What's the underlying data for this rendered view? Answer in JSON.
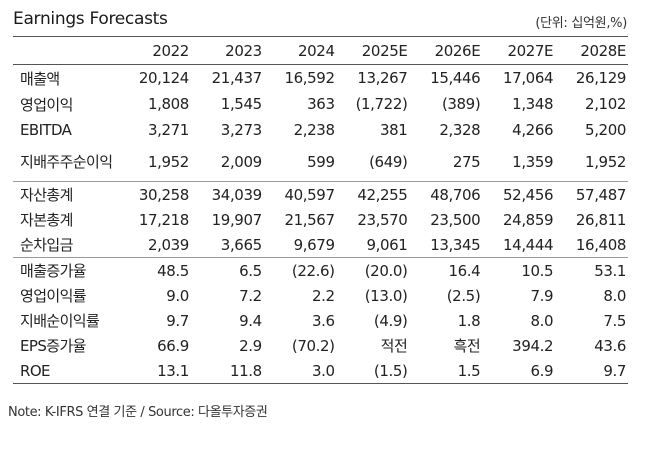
{
  "title": "Earnings Forecasts",
  "unit_note": "(단위: 십억원,%)",
  "columns": [
    "",
    "2022",
    "2023",
    "2024",
    "2025E",
    "2026E",
    "2027E",
    "2028E"
  ],
  "groups": [
    {
      "rows": [
        {
          "label": "매출액",
          "values": [
            "20,124",
            "21,437",
            "16,592",
            "13,267",
            "15,446",
            "17,064",
            "26,129"
          ]
        },
        {
          "label": "영업이익",
          "values": [
            "1,808",
            "1,545",
            "363",
            "(1,722)",
            "(389)",
            "1,348",
            "2,102"
          ]
        },
        {
          "label": "EBITDA",
          "values": [
            "3,271",
            "3,273",
            "2,238",
            "381",
            "2,328",
            "4,266",
            "5,200"
          ]
        },
        {
          "label": "지배주주순이익",
          "values": [
            "1,952",
            "2,009",
            "599",
            "(649)",
            "275",
            "1,359",
            "1,952"
          ]
        }
      ]
    },
    {
      "rows": [
        {
          "label": "자산총계",
          "values": [
            "30,258",
            "34,039",
            "40,597",
            "42,255",
            "48,706",
            "52,456",
            "57,487"
          ]
        },
        {
          "label": "자본총계",
          "values": [
            "17,218",
            "19,907",
            "21,567",
            "23,570",
            "23,500",
            "24,859",
            "26,811"
          ]
        },
        {
          "label": "순차입금",
          "values": [
            "2,039",
            "3,665",
            "9,679",
            "9,061",
            "13,345",
            "14,444",
            "16,408"
          ]
        }
      ]
    },
    {
      "rows": [
        {
          "label": "매출증가율",
          "values": [
            "48.5",
            "6.5",
            "(22.6)",
            "(20.0)",
            "16.4",
            "10.5",
            "53.1"
          ]
        },
        {
          "label": "영업이익률",
          "values": [
            "9.0",
            "7.2",
            "2.2",
            "(13.0)",
            "(2.5)",
            "7.9",
            "8.0"
          ]
        },
        {
          "label": "지배순이익률",
          "values": [
            "9.7",
            "9.4",
            "3.6",
            "(4.9)",
            "1.8",
            "8.0",
            "7.5"
          ]
        },
        {
          "label": "EPS증가율",
          "values": [
            "66.9",
            "2.9",
            "(70.2)",
            "적전",
            "흑전",
            "394.2",
            "43.6"
          ]
        },
        {
          "label": "ROE",
          "values": [
            "13.1",
            "11.8",
            "3.0",
            "(1.5)",
            "1.5",
            "6.9",
            "9.7"
          ]
        }
      ]
    }
  ],
  "footnote": "Note: K-IFRS 연결 기준 / Source: 다올투자증권"
}
